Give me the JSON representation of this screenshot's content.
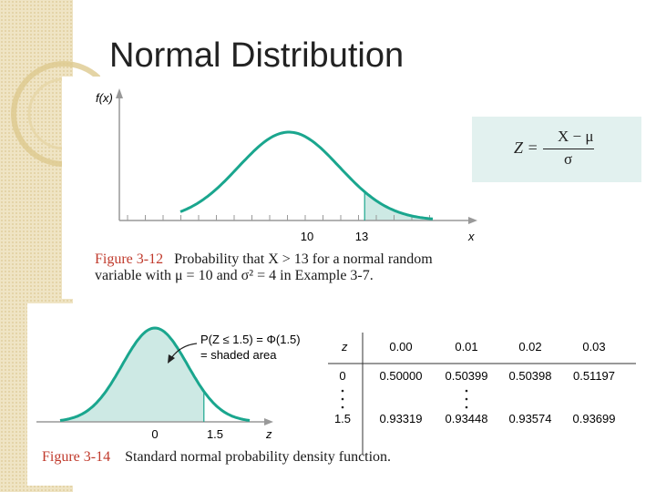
{
  "slide": {
    "title": "Normal Distribution"
  },
  "figure_top": {
    "y_axis_label": "f(x)",
    "x_axis_label": "x",
    "tick_labels": [
      "10",
      "13"
    ],
    "caption_label": "Figure 3-12",
    "caption_text_1": "Probability that X > 13 for a normal random",
    "caption_text_2": "variable with μ = 10 and σ² = 4 in Example 3-7."
  },
  "formula": {
    "lhs": "Z =",
    "numerator": "X − μ",
    "denominator": "σ"
  },
  "figure_bottom": {
    "annotation_1": "P(Z ≤ 1.5) = Φ(1.5)",
    "annotation_2": "= shaded area",
    "x_axis_label": "z",
    "tick_labels": [
      "0",
      "1.5"
    ],
    "caption_label": "Figure 3-14",
    "caption_text": "Standard normal probability density function."
  },
  "table": {
    "header_z": "z",
    "columns": [
      "0.00",
      "0.01",
      "0.02",
      "0.03"
    ],
    "row_1": {
      "z": "0",
      "values": [
        "0.50000",
        "0.50399",
        "0.50398",
        "0.51197"
      ]
    },
    "row_2": {
      "z": "1.5",
      "values": [
        "0.93319",
        "0.93448",
        "0.93574",
        "0.93699"
      ]
    }
  },
  "chart_data": [
    {
      "type": "area",
      "distribution": "normal",
      "mean": 10,
      "sd": 2,
      "shaded_region": {
        "from": 13,
        "to": "∞"
      },
      "xlabel": "x",
      "ylabel": "f(x)",
      "xticks": [
        "10",
        "13"
      ]
    },
    {
      "type": "area",
      "distribution": "normal",
      "mean": 0,
      "sd": 1,
      "shaded_region": {
        "from": "−∞",
        "to": 1.5
      },
      "xlabel": "z",
      "xticks": [
        "0",
        "1.5"
      ]
    }
  ],
  "colors": {
    "curve": "#1aa68e",
    "shade": "#cde9e4",
    "formula_bg": "#e2f1ef",
    "caption_label": "#c0392b"
  }
}
